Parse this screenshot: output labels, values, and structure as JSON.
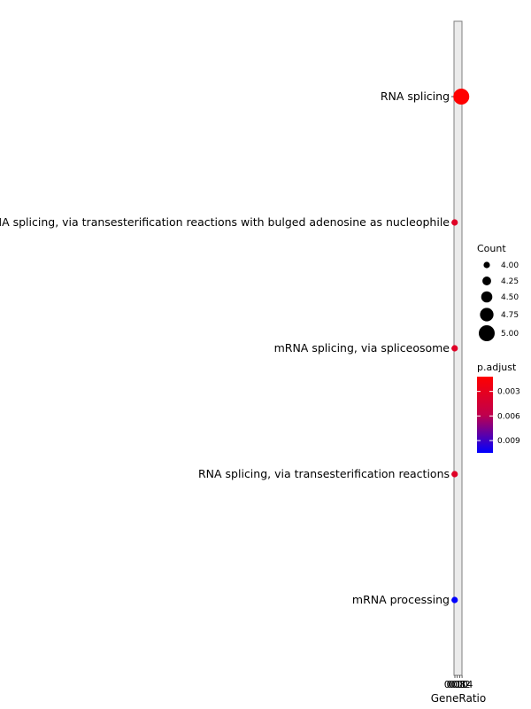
{
  "chart_data": {
    "type": "scatter",
    "subtype": "dotplot",
    "xlabel": "GeneRatio",
    "x_ticks": [
      "0.08",
      "0.10",
      "0.12",
      "0.14"
    ],
    "categories": [
      "RNA splicing",
      "RNA splicing, via transesterification reactions with bulged adenosine as nucleophile",
      "mRNA splicing, via spliceosome",
      "RNA splicing, via transesterification reactions",
      "mRNA processing"
    ],
    "points": [
      {
        "term": "RNA splicing",
        "gene_ratio": 0.1136,
        "count": 5,
        "p_adjust": 0.0012
      },
      {
        "term": "RNA splicing, via transesterification reactions with bulged adenosine as nucleophile",
        "gene_ratio": 0.0909,
        "count": 4,
        "p_adjust": 0.0035
      },
      {
        "term": "mRNA splicing, via spliceosome",
        "gene_ratio": 0.0909,
        "count": 4,
        "p_adjust": 0.0035
      },
      {
        "term": "RNA splicing, via transesterification reactions",
        "gene_ratio": 0.0909,
        "count": 4,
        "p_adjust": 0.0035
      },
      {
        "term": "mRNA processing",
        "gene_ratio": 0.0909,
        "count": 4,
        "p_adjust": 0.0105
      }
    ],
    "xlim": [
      0.0886,
      0.1159
    ],
    "grid": false,
    "legend_position": "right",
    "size_legend": {
      "title": "Count",
      "labels": [
        "4.00",
        "4.25",
        "4.50",
        "4.75",
        "5.00"
      ],
      "values": [
        4.0,
        4.25,
        4.5,
        4.75,
        5.0
      ]
    },
    "color_legend": {
      "title": "p.adjust",
      "labels": [
        "0.003",
        "0.006",
        "0.009"
      ],
      "values": [
        0.003,
        0.006,
        0.009
      ],
      "range": [
        0.0012,
        0.0105
      ],
      "low_color": "#ff0000",
      "high_color": "#0000ff"
    },
    "colors": {
      "panel_border": "#7f7f7f",
      "panel_fill": "#ebebeb",
      "point_outline": "#000000"
    }
  }
}
